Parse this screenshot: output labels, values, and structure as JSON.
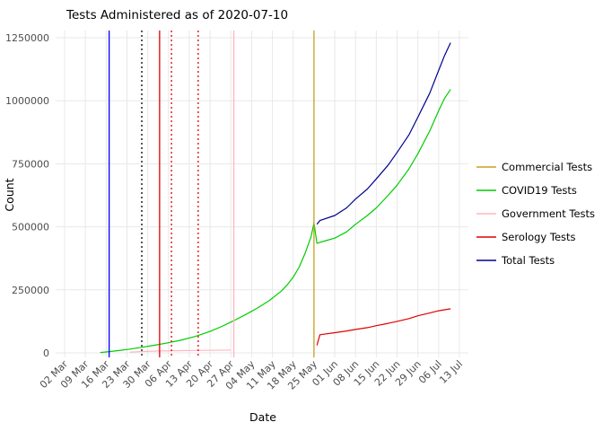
{
  "chart_data": {
    "type": "line",
    "title": "Tests Administered as of 2020-07-10",
    "xlabel": "Date",
    "ylabel": "Count",
    "x_domain": [
      "2020-03-02",
      "2020-07-13"
    ],
    "ylim": [
      0,
      1250000
    ],
    "grid": true,
    "legend_position": "right",
    "x_tick_labels": [
      "02 Mar",
      "09 Mar",
      "16 Mar",
      "23 Mar",
      "30 Mar",
      "06 Apr",
      "13 Apr",
      "20 Apr",
      "27 Apr",
      "04 May",
      "11 May",
      "18 May",
      "25 May",
      "01 Jun",
      "08 Jun",
      "15 Jun",
      "22 Jun",
      "29 Jun",
      "06 Jul",
      "13 Jul"
    ],
    "y_ticks": [
      0,
      250000,
      500000,
      750000,
      1000000,
      1250000
    ],
    "y_tick_labels": [
      "0",
      "250000",
      "500000",
      "750000",
      "1000000",
      "1250000"
    ],
    "series": [
      {
        "name": "Commercial Tests",
        "color": "#c8a01e",
        "points": []
      },
      {
        "name": "COVID19 Tests",
        "color": "#00cc00",
        "points": [
          [
            "2020-03-14",
            1500
          ],
          [
            "2020-03-17",
            5000
          ],
          [
            "2020-03-20",
            9000
          ],
          [
            "2020-03-24",
            15000
          ],
          [
            "2020-03-28",
            22000
          ],
          [
            "2020-04-01",
            30000
          ],
          [
            "2020-04-05",
            38000
          ],
          [
            "2020-04-10",
            50000
          ],
          [
            "2020-04-15",
            65000
          ],
          [
            "2020-04-20",
            85000
          ],
          [
            "2020-04-24",
            105000
          ],
          [
            "2020-04-28",
            128000
          ],
          [
            "2020-05-02",
            152000
          ],
          [
            "2020-05-06",
            178000
          ],
          [
            "2020-05-10",
            208000
          ],
          [
            "2020-05-14",
            245000
          ],
          [
            "2020-05-16",
            270000
          ],
          [
            "2020-05-18",
            300000
          ],
          [
            "2020-05-20",
            340000
          ],
          [
            "2020-05-22",
            395000
          ],
          [
            "2020-05-24",
            460000
          ],
          [
            "2020-05-25",
            515000
          ],
          [
            "2020-05-26",
            435000
          ],
          [
            "2020-05-29",
            445000
          ],
          [
            "2020-06-01",
            455000
          ],
          [
            "2020-06-05",
            480000
          ],
          [
            "2020-06-08",
            510000
          ],
          [
            "2020-06-12",
            545000
          ],
          [
            "2020-06-15",
            575000
          ],
          [
            "2020-06-19",
            625000
          ],
          [
            "2020-06-22",
            665000
          ],
          [
            "2020-06-26",
            730000
          ],
          [
            "2020-06-29",
            790000
          ],
          [
            "2020-07-03",
            880000
          ],
          [
            "2020-07-06",
            960000
          ],
          [
            "2020-07-08",
            1010000
          ],
          [
            "2020-07-10",
            1045000
          ]
        ]
      },
      {
        "name": "Government Tests",
        "color": "#ffb6c1",
        "points": [
          [
            "2020-03-24",
            3000
          ],
          [
            "2020-03-28",
            5500
          ],
          [
            "2020-04-03",
            7500
          ],
          [
            "2020-04-10",
            9000
          ],
          [
            "2020-04-18",
            10000
          ],
          [
            "2020-04-27",
            11000
          ]
        ]
      },
      {
        "name": "Serology Tests",
        "color": "#e10000",
        "points": [
          [
            "2020-05-26",
            30000
          ],
          [
            "2020-05-27",
            72000
          ],
          [
            "2020-06-01",
            80000
          ],
          [
            "2020-06-05",
            87000
          ],
          [
            "2020-06-08",
            93000
          ],
          [
            "2020-06-12",
            100000
          ],
          [
            "2020-06-15",
            108000
          ],
          [
            "2020-06-19",
            117000
          ],
          [
            "2020-06-22",
            125000
          ],
          [
            "2020-06-26",
            136000
          ],
          [
            "2020-06-29",
            147000
          ],
          [
            "2020-07-03",
            158000
          ],
          [
            "2020-07-06",
            167000
          ],
          [
            "2020-07-08",
            171000
          ],
          [
            "2020-07-10",
            175000
          ]
        ]
      },
      {
        "name": "Total Tests",
        "color": "#000090",
        "points": [
          [
            "2020-05-26",
            510000
          ],
          [
            "2020-05-27",
            525000
          ],
          [
            "2020-06-01",
            545000
          ],
          [
            "2020-06-05",
            575000
          ],
          [
            "2020-06-08",
            610000
          ],
          [
            "2020-06-12",
            650000
          ],
          [
            "2020-06-15",
            690000
          ],
          [
            "2020-06-19",
            745000
          ],
          [
            "2020-06-22",
            795000
          ],
          [
            "2020-06-26",
            865000
          ],
          [
            "2020-06-29",
            935000
          ],
          [
            "2020-07-03",
            1030000
          ],
          [
            "2020-07-06",
            1120000
          ],
          [
            "2020-07-08",
            1180000
          ],
          [
            "2020-07-10",
            1230000
          ]
        ]
      }
    ],
    "vlines": [
      {
        "date": "2020-03-17",
        "color": "#0000ff",
        "style": "solid"
      },
      {
        "date": "2020-03-28",
        "color": "#000000",
        "style": "dotted"
      },
      {
        "date": "2020-04-03",
        "color": "#e10000",
        "style": "solid"
      },
      {
        "date": "2020-04-07",
        "color": "#e10000",
        "style": "dotted"
      },
      {
        "date": "2020-04-16",
        "color": "#e10000",
        "style": "dotted"
      },
      {
        "date": "2020-04-28",
        "color": "#ffb6c1",
        "style": "solid"
      },
      {
        "date": "2020-05-25",
        "color": "#c8a01e",
        "style": "solid"
      }
    ],
    "colors": {
      "grid": "#e8e8e8",
      "tick_text": "#4d4d4d",
      "background": "#ffffff"
    }
  }
}
